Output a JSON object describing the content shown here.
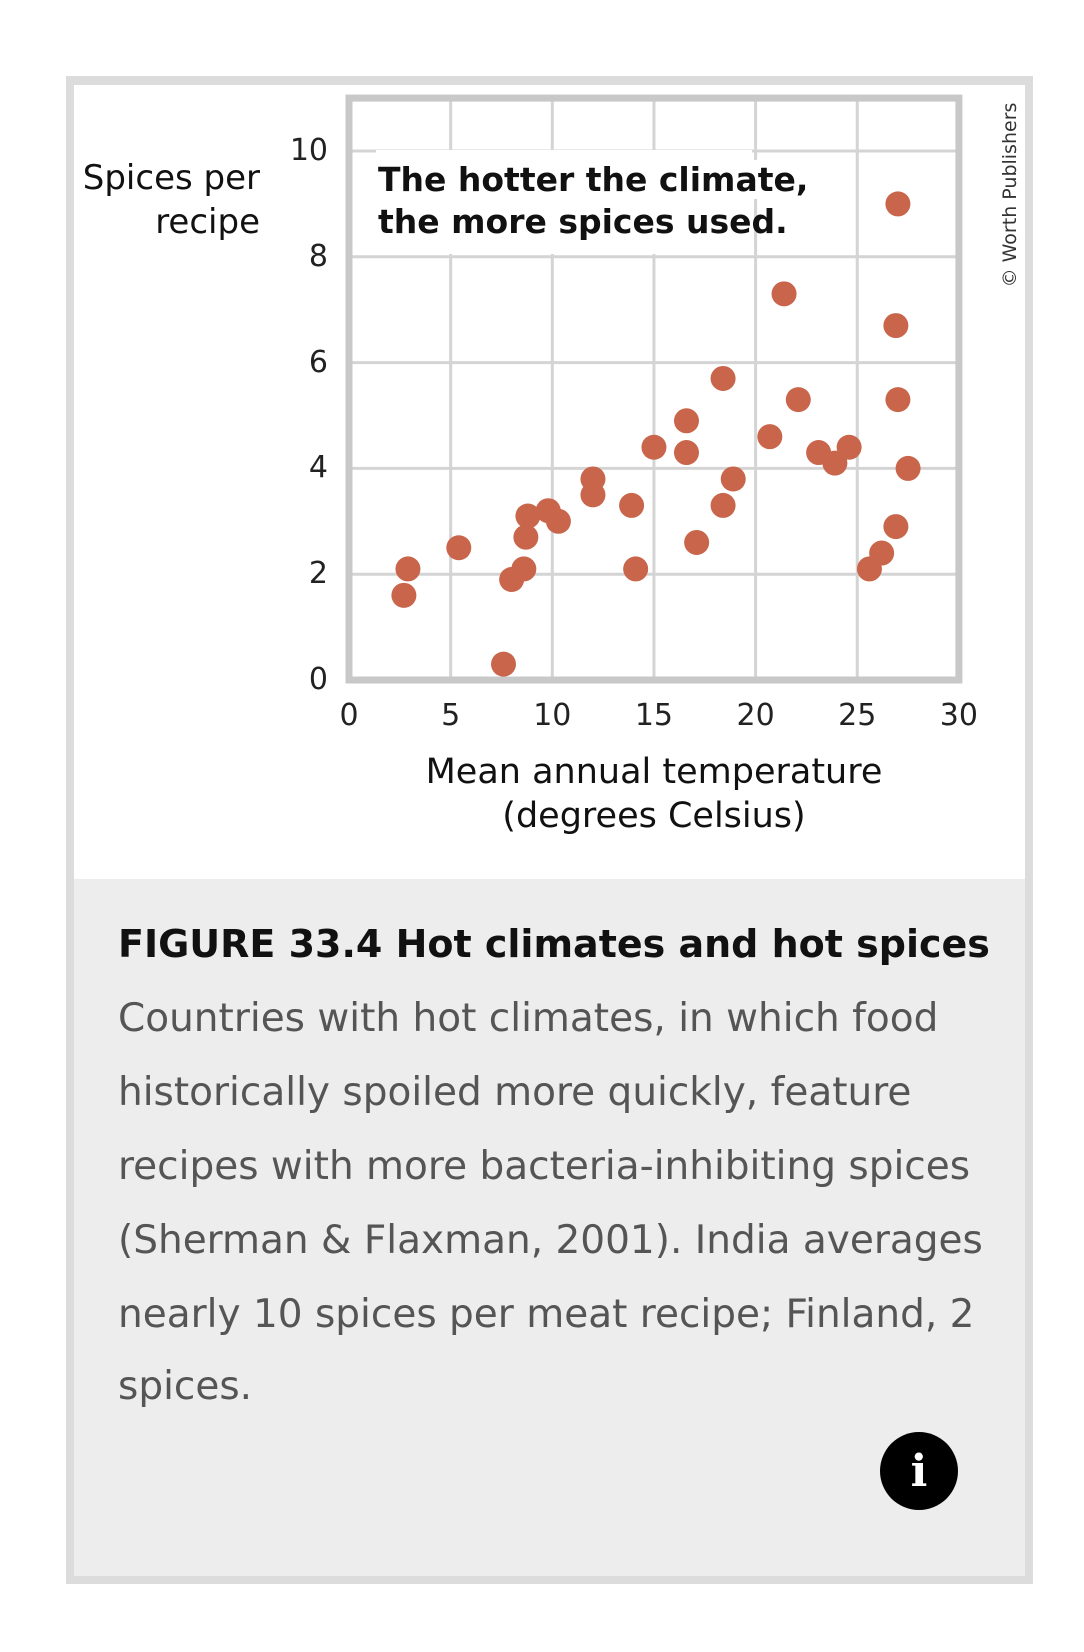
{
  "chart_data": {
    "type": "scatter",
    "title": "",
    "annotation": [
      "The hotter the climate,",
      "the more spices used."
    ],
    "xlabel": [
      "Mean annual temperature",
      "(degrees Celsius)"
    ],
    "ylabel": [
      "Spices per",
      "recipe"
    ],
    "xlim": [
      0,
      30
    ],
    "ylim": [
      0,
      11
    ],
    "xticks": [
      "0",
      "5",
      "10",
      "15",
      "20",
      "25",
      "30"
    ],
    "yticks": [
      "0",
      "2",
      "4",
      "6",
      "8",
      "10"
    ],
    "grid": true,
    "point_color": "#c8654b",
    "points": [
      [
        2.7,
        1.6
      ],
      [
        2.9,
        2.1
      ],
      [
        5.4,
        2.5
      ],
      [
        7.6,
        0.3
      ],
      [
        8.0,
        1.9
      ],
      [
        8.6,
        2.1
      ],
      [
        8.7,
        2.7
      ],
      [
        8.8,
        3.1
      ],
      [
        9.8,
        3.2
      ],
      [
        10.3,
        3.0
      ],
      [
        12.0,
        3.8
      ],
      [
        12.0,
        3.5
      ],
      [
        13.9,
        3.3
      ],
      [
        14.1,
        2.1
      ],
      [
        15.0,
        4.4
      ],
      [
        16.6,
        4.9
      ],
      [
        16.6,
        4.3
      ],
      [
        17.1,
        2.6
      ],
      [
        18.4,
        5.7
      ],
      [
        18.4,
        3.3
      ],
      [
        18.9,
        3.8
      ],
      [
        20.7,
        4.6
      ],
      [
        21.4,
        7.3
      ],
      [
        22.1,
        5.3
      ],
      [
        23.1,
        4.3
      ],
      [
        23.9,
        4.1
      ],
      [
        24.6,
        4.4
      ],
      [
        25.6,
        2.1
      ],
      [
        26.2,
        2.4
      ],
      [
        26.9,
        2.9
      ],
      [
        27.0,
        9.0
      ],
      [
        26.9,
        6.7
      ],
      [
        27.0,
        5.3
      ],
      [
        27.5,
        4.0
      ]
    ]
  },
  "copyright": "© Worth Publishers",
  "caption": {
    "title": "FIGURE 33.4 Hot climates and hot spices",
    "lines": [
      "Countries with hot climates, in which food",
      "historically spoiled more quickly, feature",
      "recipes with more bacteria-inhibiting spices",
      "(Sherman & Flaxman, 2001). India averages",
      "nearly 10 spices per meat recipe; Finland, 2",
      "spices."
    ]
  },
  "info_button": "i"
}
